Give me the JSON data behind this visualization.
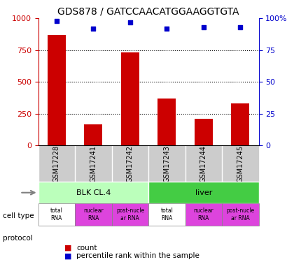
{
  "title": "GDS878 / GATCCAACATGGAAGGTGTA",
  "samples": [
    "GSM17228",
    "GSM17241",
    "GSM17242",
    "GSM17243",
    "GSM17244",
    "GSM17245"
  ],
  "counts": [
    870,
    165,
    730,
    370,
    210,
    330
  ],
  "percentiles": [
    98,
    92,
    97,
    92,
    93,
    93
  ],
  "ylim_left": [
    0,
    1000
  ],
  "ylim_right": [
    0,
    100
  ],
  "yticks_left": [
    0,
    250,
    500,
    750,
    1000
  ],
  "yticks_right": [
    0,
    25,
    50,
    75,
    100
  ],
  "cell_types": [
    {
      "label": "BLK CL.4",
      "span": [
        0,
        3
      ],
      "color": "#aaffaa"
    },
    {
      "label": "liver",
      "span": [
        3,
        6
      ],
      "color": "#44dd44"
    }
  ],
  "protocols": [
    {
      "label": "total\nRNA",
      "color": "#ffffff"
    },
    {
      "label": "nuclear\nRNA",
      "color": "#dd66dd"
    },
    {
      "label": "post-nucle\nar RNA",
      "color": "#dd66dd"
    },
    {
      "label": "total\nRNA",
      "color": "#ffffff"
    },
    {
      "label": "nuclear\nRNA",
      "color": "#dd66dd"
    },
    {
      "label": "post-nucle\nar RNA",
      "color": "#dd66dd"
    }
  ],
  "bar_color": "#cc0000",
  "dot_color": "#0000cc",
  "grid_color": "#000000",
  "left_axis_color": "#cc0000",
  "right_axis_color": "#0000cc",
  "sample_bg_color": "#cccccc",
  "cell_type_light_green": "#bbffbb",
  "cell_type_dark_green": "#44cc44"
}
